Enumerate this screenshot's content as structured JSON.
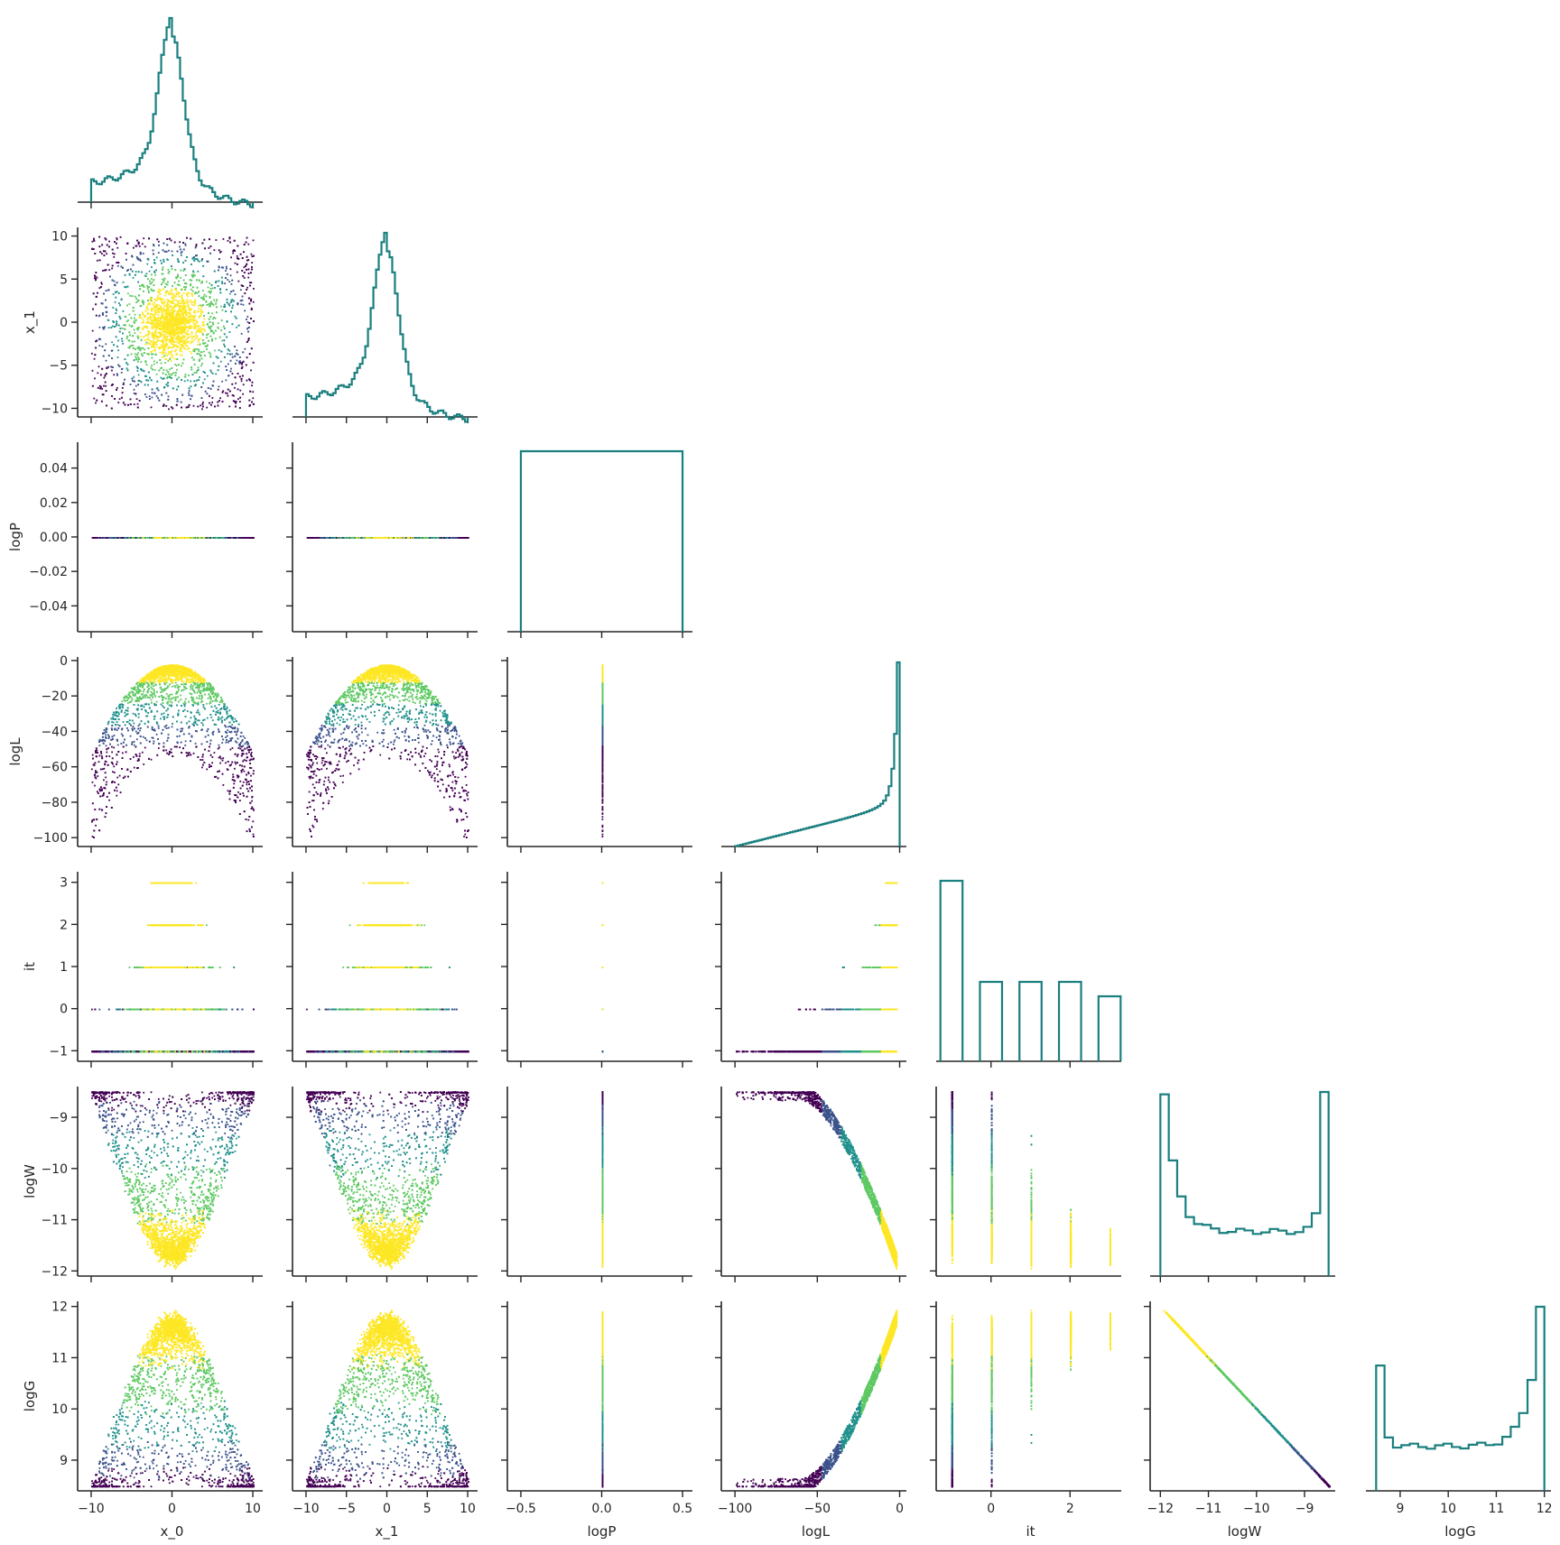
{
  "chart_data": {
    "type": "pairplot-corner",
    "variables": [
      "x_0",
      "x_1",
      "logP",
      "logL",
      "it",
      "logW",
      "logG"
    ],
    "colormap": [
      "#440154",
      "#3b528b",
      "#21918c",
      "#5ec962",
      "#fde725"
    ],
    "hist_color": "#1a7f7f",
    "axes": {
      "x_0": {
        "range": [
          -11,
          11
        ],
        "ticks": [
          -10,
          0,
          10
        ],
        "tick_labels": [
          "−10",
          "0",
          "10"
        ]
      },
      "x_1": {
        "range": [
          -11,
          11
        ],
        "ticks": [
          -10,
          -5,
          0,
          5,
          10
        ],
        "tick_labels": [
          "−10",
          "−5",
          "0",
          "5",
          "10"
        ]
      },
      "logP": {
        "range": [
          -0.055,
          0.055
        ],
        "ticks": [
          -0.04,
          -0.02,
          0.0,
          0.02,
          0.04
        ],
        "tick_labels": [
          "−0.04",
          "−0.02",
          "0.00",
          "0.02",
          "0.04"
        ],
        "xrange": [
          -0.55,
          0.55
        ],
        "xticks": [
          -0.5,
          0.0,
          0.5
        ],
        "xtick_labels": [
          "−0.5",
          "0.0",
          "0.5"
        ]
      },
      "logL": {
        "range": [
          -105,
          2
        ],
        "ticks": [
          -100,
          -80,
          -60,
          -40,
          -20,
          0
        ],
        "tick_labels": [
          "−100",
          "−80",
          "−60",
          "−40",
          "−20",
          "0"
        ],
        "xticks": [
          -100,
          -50,
          0
        ],
        "xtick_labels": [
          "−100",
          "−50",
          "0"
        ]
      },
      "it": {
        "range": [
          -1.25,
          3.25
        ],
        "ticks": [
          -1,
          0,
          1,
          2,
          3
        ],
        "tick_labels": [
          "−1",
          "0",
          "1",
          "2",
          "3"
        ],
        "xticks": [
          0,
          2
        ],
        "xtick_labels": [
          "0",
          "2"
        ]
      },
      "logW": {
        "range": [
          -12.1,
          -8.4
        ],
        "ticks": [
          -12,
          -11,
          -10,
          -9
        ],
        "tick_labels": [
          "−12",
          "−11",
          "−10",
          "−9"
        ]
      },
      "logG": {
        "range": [
          8.4,
          12.1
        ],
        "ticks": [
          9,
          10,
          11,
          12
        ],
        "tick_labels": [
          "9",
          "10",
          "11",
          "12"
        ]
      }
    },
    "histograms": {
      "x_0": "bell-with-flat-tails",
      "x_1": "bell-with-flat-tails",
      "logP": "single-box",
      "logL": "skewed-peak-near-0",
      "it": {
        "bins": [
          -1,
          0,
          1,
          2,
          3
        ],
        "relative_heights": [
          1.0,
          0.44,
          0.44,
          0.44,
          0.36
        ]
      },
      "logW": "u-shape",
      "logG": "u-shape"
    },
    "grid": false,
    "legend": "none"
  }
}
